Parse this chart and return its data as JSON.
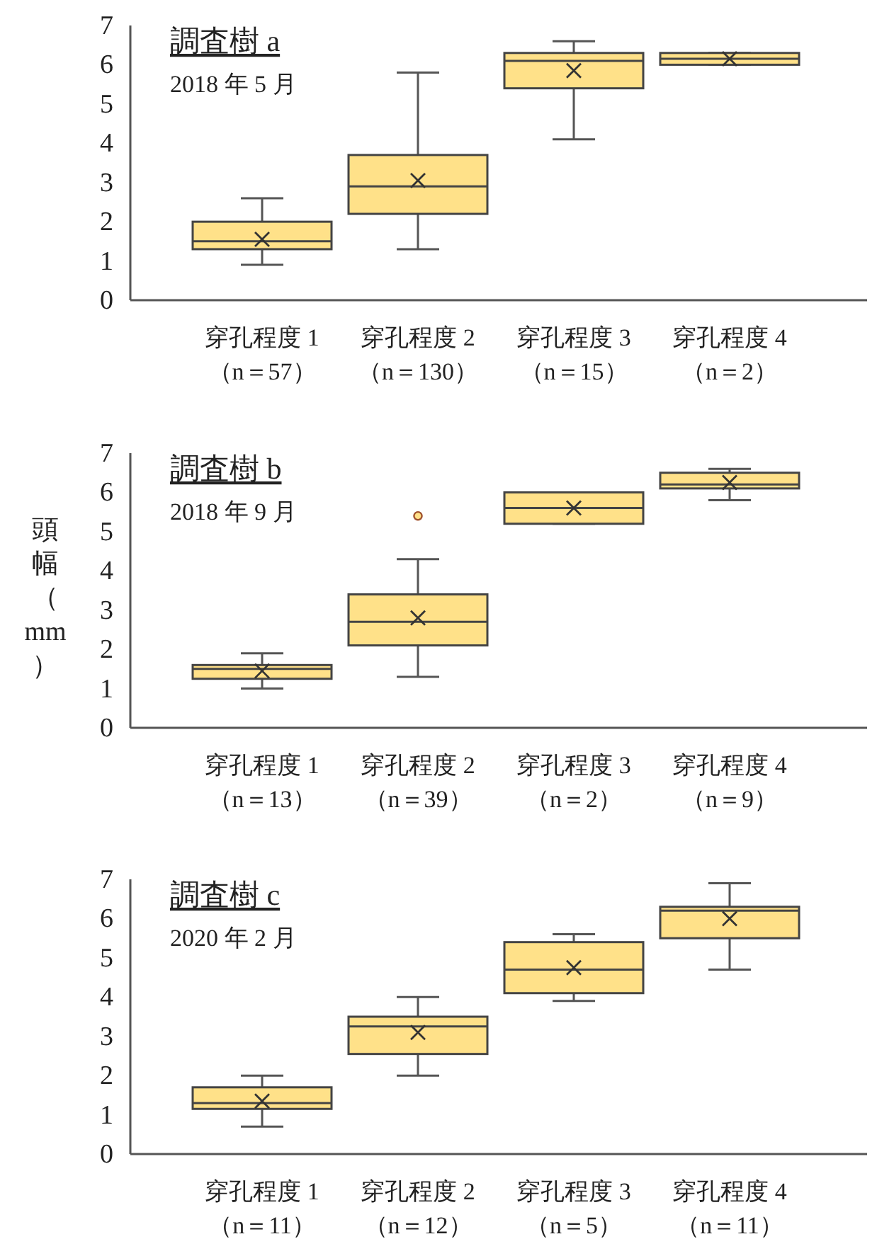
{
  "chart_data": [
    {
      "type": "box",
      "title": "調査樹 a",
      "subtitle": "2018 年 5 月",
      "categories": [
        "穿孔程度 1\n（n＝57）",
        "穿孔程度 2\n（n＝130）",
        "穿孔程度 3\n（n＝15）",
        "穿孔程度 4\n（n＝2）"
      ],
      "ylim": [
        0,
        7
      ],
      "yticks": [
        0,
        1,
        2,
        3,
        4,
        5,
        6,
        7
      ],
      "series": [
        {
          "color": "#ffe189",
          "boxes": [
            {
              "low": 0.9,
              "q1": 1.3,
              "median": 1.5,
              "q3": 2.0,
              "high": 2.6,
              "mean": 1.55
            },
            {
              "low": 1.3,
              "q1": 2.2,
              "median": 2.9,
              "q3": 3.7,
              "high": 5.8,
              "mean": 3.05
            },
            {
              "low": 4.1,
              "q1": 5.4,
              "median": 6.1,
              "q3": 6.3,
              "high": 6.6,
              "mean": 5.85
            },
            {
              "low": 6.0,
              "q1": 6.0,
              "median": 6.15,
              "q3": 6.3,
              "high": 6.3,
              "mean": 6.15
            }
          ]
        }
      ]
    },
    {
      "type": "box",
      "title": "調査樹 b",
      "subtitle": "2018 年 9 月",
      "ylabel": "頭幅（mm）",
      "categories": [
        "穿孔程度 1\n（n＝13）",
        "穿孔程度 2\n（n＝39）",
        "穿孔程度 3\n（n＝2）",
        "穿孔程度 4\n（n＝9）"
      ],
      "ylim": [
        0,
        7
      ],
      "yticks": [
        0,
        1,
        2,
        3,
        4,
        5,
        6,
        7
      ],
      "series": [
        {
          "color": "#ffe189",
          "boxes": [
            {
              "low": 1.0,
              "q1": 1.25,
              "median": 1.5,
              "q3": 1.6,
              "high": 1.9,
              "mean": 1.45
            },
            {
              "low": 1.3,
              "q1": 2.1,
              "median": 2.7,
              "q3": 3.4,
              "high": 4.3,
              "mean": 2.8,
              "outliers": [
                5.4
              ]
            },
            {
              "low": 5.2,
              "q1": 5.2,
              "median": 5.6,
              "q3": 6.0,
              "high": 6.0,
              "mean": 5.6
            },
            {
              "low": 5.8,
              "q1": 6.1,
              "median": 6.2,
              "q3": 6.5,
              "high": 6.6,
              "mean": 6.25
            }
          ]
        }
      ]
    },
    {
      "type": "box",
      "title": "調査樹 c",
      "subtitle": "2020 年 2 月",
      "categories": [
        "穿孔程度 1\n（n＝11）",
        "穿孔程度 2\n（n＝12）",
        "穿孔程度 3\n（n＝5）",
        "穿孔程度 4\n（n＝11）"
      ],
      "ylim": [
        0,
        7
      ],
      "yticks": [
        0,
        1,
        2,
        3,
        4,
        5,
        6,
        7
      ],
      "series": [
        {
          "color": "#ffe189",
          "boxes": [
            {
              "low": 0.7,
              "q1": 1.15,
              "median": 1.3,
              "q3": 1.7,
              "high": 2.0,
              "mean": 1.35
            },
            {
              "low": 2.0,
              "q1": 2.55,
              "median": 3.25,
              "q3": 3.5,
              "high": 4.0,
              "mean": 3.1
            },
            {
              "low": 3.9,
              "q1": 4.1,
              "median": 4.7,
              "q3": 5.4,
              "high": 5.6,
              "mean": 4.75
            },
            {
              "low": 4.7,
              "q1": 5.5,
              "median": 6.2,
              "q3": 6.3,
              "high": 6.9,
              "mean": 6.0
            }
          ]
        }
      ]
    }
  ]
}
